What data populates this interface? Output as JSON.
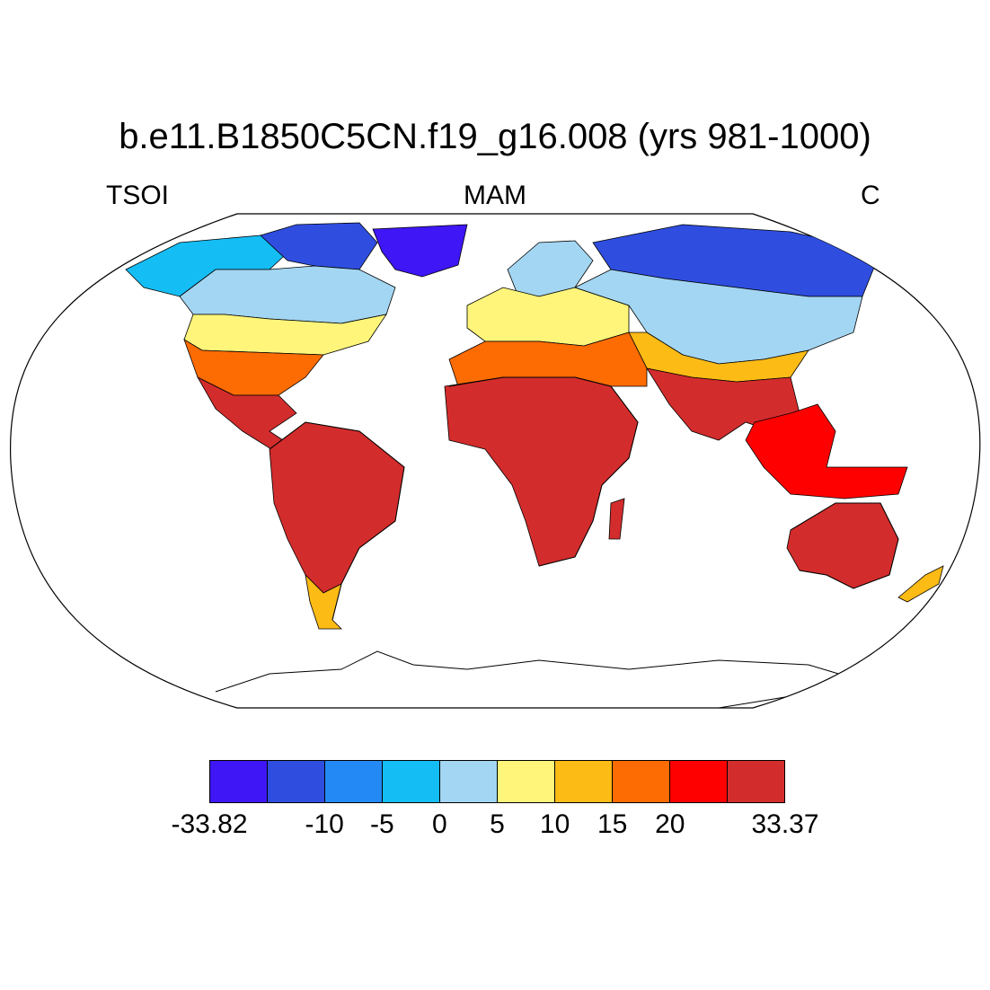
{
  "title": "b.e11.B1850C5CN.f19_g16.008 (yrs 981-1000)",
  "left_label": "TSOI",
  "center_label": "MAM",
  "right_label": "C",
  "projection": "Robinson",
  "colorbar": {
    "colors": [
      "#3f16f5",
      "#2f4ee0",
      "#238af5",
      "#15bdf5",
      "#a3d6f2",
      "#fef57a",
      "#fdbb16",
      "#fd6b03",
      "#fe0000",
      "#d32c2c"
    ],
    "labels": [
      {
        "boundary": 0,
        "text": "-33.82"
      },
      {
        "boundary": 2,
        "text": "-10"
      },
      {
        "boundary": 3,
        "text": "-5"
      },
      {
        "boundary": 4,
        "text": "0"
      },
      {
        "boundary": 5,
        "text": "5"
      },
      {
        "boundary": 6,
        "text": "10"
      },
      {
        "boundary": 7,
        "text": "15"
      },
      {
        "boundary": 8,
        "text": "20"
      },
      {
        "boundary": 10,
        "text": "33.37"
      }
    ]
  },
  "regions": [
    {
      "name": "Greenland",
      "color_index": 0
    },
    {
      "name": "Canadian Arctic",
      "color_index": 1
    },
    {
      "name": "Alaska and northern Canada",
      "color_index": 3
    },
    {
      "name": "Canada",
      "color_index": 4
    },
    {
      "name": "Northern United States",
      "color_index": 5
    },
    {
      "name": "Southern United States",
      "color_index": 7
    },
    {
      "name": "Mexico and Central America",
      "color_index": 9
    },
    {
      "name": "South America",
      "color_index": 9
    },
    {
      "name": "Patagonia",
      "color_index": 6
    },
    {
      "name": "Scandinavia",
      "color_index": 4
    },
    {
      "name": "Europe",
      "color_index": 5
    },
    {
      "name": "Siberia",
      "color_index": 1
    },
    {
      "name": "Northern Asia",
      "color_index": 4
    },
    {
      "name": "Central Asia",
      "color_index": 6
    },
    {
      "name": "North Africa and Middle East",
      "color_index": 7
    },
    {
      "name": "Africa",
      "color_index": 9
    },
    {
      "name": "South Asia",
      "color_index": 9
    },
    {
      "name": "Southeast Asia and Indonesia",
      "color_index": 8
    },
    {
      "name": "Australia",
      "color_index": 9
    },
    {
      "name": "New Zealand",
      "color_index": 6
    }
  ]
}
